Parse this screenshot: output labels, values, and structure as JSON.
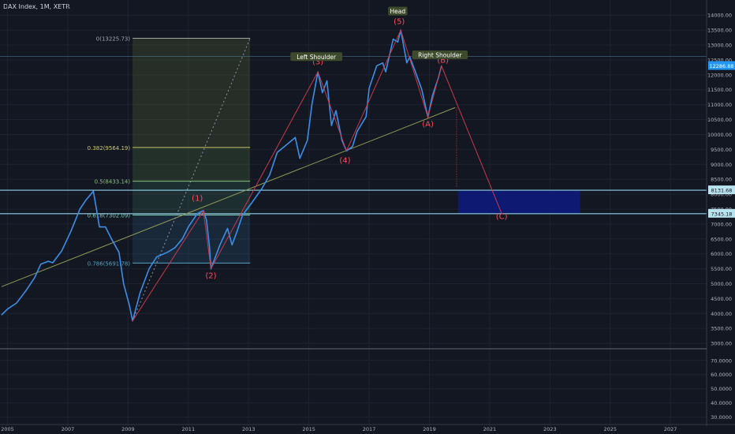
{
  "header": {
    "title": "DAX Index, 1M, XETR"
  },
  "chart_data": {
    "type": "line",
    "title": "DAX Index, 1M, XETR",
    "x_unit": "year",
    "xlim": [
      2004.75,
      2028.2
    ],
    "ylim": [
      2870,
      14350
    ],
    "lower_pane_ylim": [
      27,
      76
    ],
    "x_ticks": [
      "2005",
      "2007",
      "2009",
      "2011",
      "2013",
      "2015",
      "2017",
      "2019",
      "2021",
      "2023",
      "2025",
      "2027"
    ],
    "x_tick_values": [
      2005,
      2007,
      2009,
      2011,
      2013,
      2015,
      2017,
      2019,
      2021,
      2023,
      2025,
      2027
    ],
    "y_ticks": [
      "14000.00",
      "13500.00",
      "13000.00",
      "12500.00",
      "12000.00",
      "11500.00",
      "11000.00",
      "10500.00",
      "10000.00",
      "9500.00",
      "9000.00",
      "8500.00",
      "8000.00",
      "7500.00",
      "7000.00",
      "6500.00",
      "6000.00",
      "5500.00",
      "5000.00",
      "4500.00",
      "4000.00",
      "3500.00",
      "3000.00"
    ],
    "y_tick_values": [
      14000,
      13500,
      13000,
      12500,
      12000,
      11500,
      11000,
      10500,
      10000,
      9500,
      9000,
      8500,
      8000,
      7500,
      7000,
      6500,
      6000,
      5500,
      5000,
      4500,
      4000,
      3500,
      3000
    ],
    "lower_y_ticks": [
      "70.0000",
      "60.0000",
      "50.0000",
      "40.0000",
      "30.0000"
    ],
    "lower_y_tick_values": [
      70,
      60,
      50,
      40,
      30
    ],
    "series": [
      {
        "color": "#3b8fe8",
        "points": [
          [
            2004.8,
            3950
          ],
          [
            2005.0,
            4150
          ],
          [
            2005.3,
            4350
          ],
          [
            2005.6,
            4750
          ],
          [
            2005.9,
            5200
          ],
          [
            2006.1,
            5650
          ],
          [
            2006.35,
            5750
          ],
          [
            2006.5,
            5700
          ],
          [
            2006.8,
            6100
          ],
          [
            2007.1,
            6750
          ],
          [
            2007.4,
            7500
          ],
          [
            2007.6,
            7800
          ],
          [
            2007.85,
            8100
          ],
          [
            2007.95,
            7500
          ],
          [
            2008.05,
            6900
          ],
          [
            2008.25,
            6900
          ],
          [
            2008.45,
            6500
          ],
          [
            2008.7,
            6050
          ],
          [
            2008.85,
            5000
          ],
          [
            2009.05,
            4250
          ],
          [
            2009.15,
            3750
          ],
          [
            2009.4,
            4700
          ],
          [
            2009.7,
            5500
          ],
          [
            2009.95,
            5900
          ],
          [
            2010.3,
            6050
          ],
          [
            2010.55,
            6200
          ],
          [
            2010.8,
            6500
          ],
          [
            2011.0,
            6900
          ],
          [
            2011.3,
            7350
          ],
          [
            2011.5,
            7450
          ],
          [
            2011.6,
            7150
          ],
          [
            2011.7,
            6250
          ],
          [
            2011.75,
            5500
          ],
          [
            2011.9,
            5900
          ],
          [
            2012.05,
            6300
          ],
          [
            2012.3,
            6850
          ],
          [
            2012.45,
            6300
          ],
          [
            2012.6,
            6700
          ],
          [
            2012.8,
            7300
          ],
          [
            2013.1,
            7700
          ],
          [
            2013.45,
            8200
          ],
          [
            2013.7,
            8650
          ],
          [
            2013.95,
            9400
          ],
          [
            2014.25,
            9650
          ],
          [
            2014.55,
            9900
          ],
          [
            2014.7,
            9200
          ],
          [
            2014.95,
            9800
          ],
          [
            2015.1,
            11000
          ],
          [
            2015.3,
            12100
          ],
          [
            2015.45,
            11400
          ],
          [
            2015.6,
            11800
          ],
          [
            2015.75,
            10300
          ],
          [
            2015.9,
            10800
          ],
          [
            2016.1,
            9800
          ],
          [
            2016.25,
            9450
          ],
          [
            2016.45,
            9600
          ],
          [
            2016.6,
            10100
          ],
          [
            2016.9,
            10600
          ],
          [
            2017.0,
            11550
          ],
          [
            2017.25,
            12300
          ],
          [
            2017.45,
            12400
          ],
          [
            2017.55,
            12100
          ],
          [
            2017.8,
            13200
          ],
          [
            2017.95,
            13100
          ],
          [
            2018.05,
            13500
          ],
          [
            2018.25,
            12400
          ],
          [
            2018.35,
            12600
          ],
          [
            2018.5,
            12200
          ],
          [
            2018.75,
            11500
          ],
          [
            2018.95,
            10580
          ],
          [
            2019.1,
            11300
          ],
          [
            2019.3,
            11900
          ],
          [
            2019.4,
            12300
          ]
        ]
      }
    ],
    "annotations": {
      "wave_labels": [
        {
          "text": "(1)",
          "x": 2011.3,
          "y": 7780
        },
        {
          "text": "(2)",
          "x": 2011.75,
          "y": 5180
        },
        {
          "text": "(3)",
          "x": 2015.3,
          "y": 12350
        },
        {
          "text": "(4)",
          "x": 2016.2,
          "y": 9040
        },
        {
          "text": "(5)",
          "x": 2018.0,
          "y": 13700
        },
        {
          "text": "(A)",
          "x": 2018.95,
          "y": 10260
        },
        {
          "text": "(B)",
          "x": 2019.45,
          "y": 12400
        },
        {
          "text": "(C)",
          "x": 2021.4,
          "y": 7170
        }
      ],
      "pattern_labels": [
        {
          "text": "Left Shoulder",
          "x": 2015.25,
          "y": 12570
        },
        {
          "text": "Head",
          "x": 2017.95,
          "y": 14100
        },
        {
          "text": "Right Shoulder",
          "x": 2019.35,
          "y": 12630
        }
      ],
      "wave_path": [
        [
          2009.15,
          3750
        ],
        [
          2011.5,
          7450
        ],
        [
          2011.75,
          5500
        ],
        [
          2015.3,
          12100
        ],
        [
          2016.25,
          9450
        ],
        [
          2018.05,
          13500
        ],
        [
          2018.95,
          10580
        ],
        [
          2019.4,
          12300
        ],
        [
          2021.4,
          7345
        ]
      ],
      "neckline": [
        [
          2004.8,
          4900
        ],
        [
          2019.85,
          10900
        ]
      ],
      "dotted_trend": [
        [
          2009.15,
          3750
        ],
        [
          2013.05,
          13220
        ]
      ],
      "drop_dotted": [
        [
          2019.9,
          10900
        ],
        [
          2019.9,
          8200
        ]
      ],
      "fib": {
        "x_start": 2009.15,
        "x_end": 2013.05,
        "levels": [
          {
            "label": "0(13225.73)",
            "value": 13225.73,
            "color": "#a5a5a5"
          },
          {
            "label": "0.382(9564.19)",
            "value": 9564.19,
            "color": "#c9c76a"
          },
          {
            "label": "0.5(8433.14)",
            "value": 8433.14,
            "color": "#8ac27a"
          },
          {
            "label": "0.618(7302.09)",
            "value": 7302.09,
            "color": "#7fc6b0"
          },
          {
            "label": "0.786(5691.78)",
            "value": 5691.78,
            "color": "#4fa3c3"
          }
        ]
      },
      "target_box": {
        "x1": 2019.95,
        "x2": 2024.0,
        "y1": 7345,
        "y2": 8131.68,
        "color": "#0e1a7a"
      },
      "h_lines": [
        {
          "value": 8131.68,
          "label": "8131.68"
        },
        {
          "value": 7345.18,
          "label": "7345.18"
        }
      ],
      "price_tag": {
        "value": 12300,
        "label": "12286.88"
      }
    },
    "colors": {
      "background": "#131722",
      "price_line": "#3b8fe8",
      "wave": "#c8394b",
      "neckline": "#8f9a55",
      "label_red": "#ff4a5e",
      "h_line": "#8fd3e8"
    }
  }
}
